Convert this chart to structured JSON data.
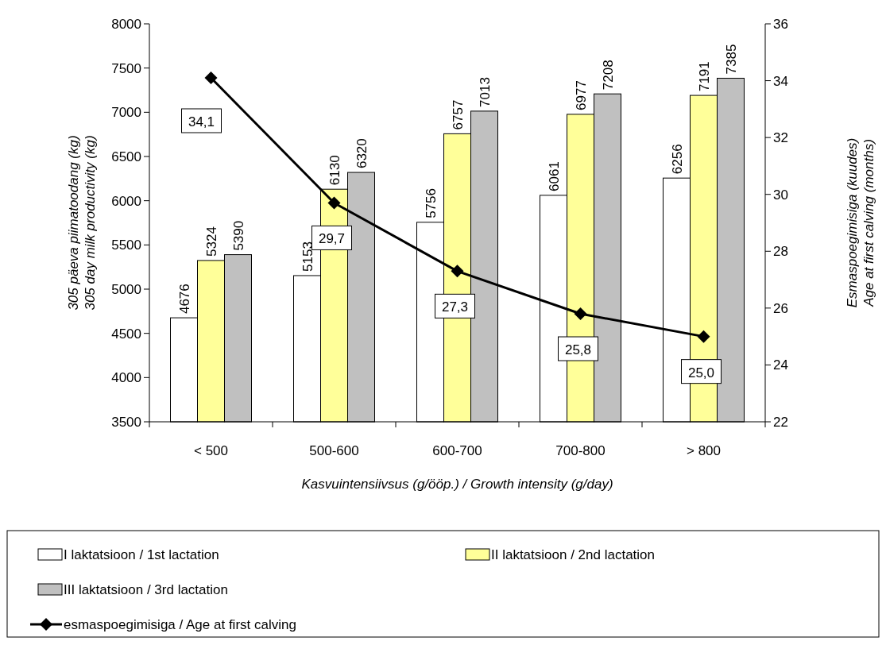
{
  "chart_data": {
    "type": "bar",
    "xlabel": "Kasvuintensiivsus (g/ööp.) / Growth intensity (g/day)",
    "ylabel": "305 päeva piimatoodang (kg)\n305 day milk productivity (kg)",
    "y2label": "Esmaspoegimisiga (kuudes)\nAge at first calving (months)",
    "categories": [
      "< 500",
      "500-600",
      "600-700",
      "700-800",
      "> 800"
    ],
    "series": [
      {
        "name": "I laktatsioon / 1st lactation",
        "color": "#ffffff",
        "values": [
          4676,
          5153,
          5756,
          6061,
          6256
        ]
      },
      {
        "name": "II laktatsioon / 2nd lactation",
        "color": "#ffff99",
        "values": [
          5324,
          6130,
          6757,
          6977,
          7191
        ]
      },
      {
        "name": "III laktatsioon / 3rd lactation",
        "color": "#c0c0c0",
        "values": [
          5390,
          6320,
          7013,
          7208,
          7385
        ]
      },
      {
        "name": "esmaspoegimisiga / Age at first calving",
        "type": "line",
        "axis": "y2",
        "color": "#000000",
        "marker": "diamond",
        "values": [
          34.1,
          29.7,
          27.3,
          25.8,
          25.0
        ],
        "value_labels": [
          "34,1",
          "29,7",
          "27,3",
          "25,8",
          "25,0"
        ]
      }
    ],
    "ylim": [
      3500,
      8000
    ],
    "yticks": [
      3500,
      4000,
      4500,
      5000,
      5500,
      6000,
      6500,
      7000,
      7500,
      8000
    ],
    "y2lim": [
      22,
      36
    ],
    "y2ticks": [
      22,
      24,
      26,
      28,
      30,
      32,
      34,
      36
    ],
    "data_labels": true,
    "legend": "bottom",
    "grid": false
  }
}
